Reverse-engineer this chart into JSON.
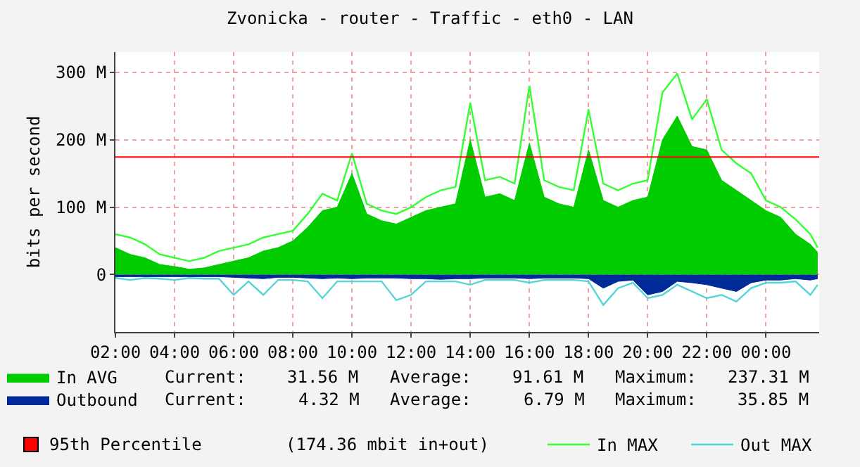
{
  "chart_data": {
    "type": "area",
    "title": "Zvonicka - router - Traffic - eth0 - LAN",
    "ylabel": "bits per second",
    "x": [
      2,
      2.5,
      3,
      3.5,
      4,
      4.5,
      5,
      5.5,
      6,
      6.5,
      7,
      7.5,
      8,
      8.5,
      9,
      9.5,
      10,
      10.5,
      11,
      11.5,
      12,
      12.5,
      13,
      13.5,
      14,
      14.5,
      15,
      15.5,
      16,
      16.5,
      17,
      17.5,
      18,
      18.5,
      19,
      19.5,
      20,
      20.5,
      21,
      21.5,
      22,
      22.5,
      23,
      23.5,
      24,
      24.5,
      25,
      25.5,
      25.75
    ],
    "series": [
      {
        "name": "In AVG",
        "color": "#00cc00",
        "values": [
          40,
          30,
          25,
          15,
          12,
          8,
          10,
          15,
          20,
          25,
          35,
          40,
          50,
          70,
          95,
          100,
          150,
          90,
          80,
          75,
          85,
          95,
          100,
          105,
          200,
          115,
          120,
          110,
          195,
          115,
          105,
          100,
          185,
          110,
          100,
          110,
          115,
          200,
          235,
          190,
          185,
          140,
          125,
          110,
          95,
          85,
          60,
          45,
          33
        ]
      },
      {
        "name": "In MAX",
        "type": "line",
        "color": "#33ff33",
        "values": [
          60,
          55,
          45,
          30,
          25,
          20,
          25,
          35,
          40,
          45,
          55,
          60,
          65,
          90,
          120,
          110,
          180,
          105,
          95,
          90,
          100,
          115,
          125,
          130,
          255,
          140,
          145,
          135,
          280,
          140,
          130,
          125,
          245,
          135,
          125,
          135,
          140,
          270,
          298,
          230,
          260,
          185,
          165,
          150,
          110,
          100,
          82,
          60,
          40
        ]
      },
      {
        "name": "Outbound",
        "color": "#002a97",
        "values": [
          -3,
          -3,
          -3,
          -3,
          -3,
          -3,
          -3,
          -3,
          -4,
          -5,
          -6,
          -4,
          -4,
          -5,
          -6,
          -5,
          -6,
          -5,
          -5,
          -5,
          -6,
          -6,
          -7,
          -6,
          -6,
          -5,
          -5,
          -5,
          -6,
          -5,
          -5,
          -5,
          -6,
          -20,
          -10,
          -8,
          -30,
          -25,
          -10,
          -12,
          -15,
          -20,
          -25,
          -12,
          -8,
          -8,
          -6,
          -8,
          -6
        ]
      },
      {
        "name": "Out MAX",
        "type": "line",
        "color": "#55d5d5",
        "values": [
          -5,
          -8,
          -5,
          -6,
          -8,
          -5,
          -6,
          -6,
          -30,
          -10,
          -30,
          -8,
          -8,
          -10,
          -35,
          -10,
          -10,
          -10,
          -10,
          -38,
          -30,
          -10,
          -10,
          -10,
          -15,
          -8,
          -8,
          -8,
          -12,
          -8,
          -8,
          -8,
          -10,
          -45,
          -20,
          -12,
          -35,
          -30,
          -15,
          -25,
          -35,
          -30,
          -40,
          -20,
          -12,
          -12,
          -10,
          -30,
          -15
        ]
      }
    ],
    "xlim": [
      2,
      25.8
    ],
    "xticks": [
      {
        "value": 2,
        "label": "02:00"
      },
      {
        "value": 4,
        "label": "04:00"
      },
      {
        "value": 6,
        "label": "06:00"
      },
      {
        "value": 8,
        "label": "08:00"
      },
      {
        "value": 10,
        "label": "10:00"
      },
      {
        "value": 12,
        "label": "12:00"
      },
      {
        "value": 14,
        "label": "14:00"
      },
      {
        "value": 16,
        "label": "16:00"
      },
      {
        "value": 18,
        "label": "18:00"
      },
      {
        "value": 20,
        "label": "20:00"
      },
      {
        "value": 22,
        "label": "22:00"
      },
      {
        "value": 24,
        "label": "00:00"
      }
    ],
    "ylim": [
      -85,
      330
    ],
    "yticks": [
      0,
      {
        "value": 100,
        "label": "100 M"
      },
      {
        "value": 200,
        "label": "200 M"
      },
      {
        "value": 300,
        "label": "300 M"
      }
    ],
    "ref_lines": [
      {
        "axis": "y",
        "value": 174.36,
        "label": "95th Percentile",
        "color": "#ff0000"
      }
    ],
    "annotations": [
      "Current:",
      "31.56 M",
      "Average:",
      "91.61 M",
      "Maximum:",
      "237.31 M",
      "Current:",
      "4.32 M",
      "Average:",
      "6.79 M",
      "Maximum:",
      "35.85 M",
      "(174.36 mbit in+out)"
    ],
    "grid": true,
    "legend": "bottom"
  }
}
